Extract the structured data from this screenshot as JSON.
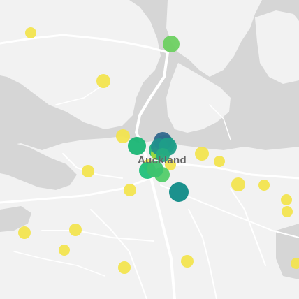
{
  "map": {
    "city_label": "Auckland",
    "colors": {
      "water": "#d6d6d6",
      "land": "#f2f2f2",
      "roads": "#ffffff",
      "label": "#666666"
    },
    "points": [
      {
        "color": "#f2e44f"
      },
      {
        "color": "#6dd061"
      },
      {
        "color": "#f2e44f"
      },
      {
        "color": "#f2e44f"
      },
      {
        "color": "#f2e44f"
      },
      {
        "color": "#f2e44f"
      },
      {
        "color": "#f2e44f"
      },
      {
        "color": "#f2e44f"
      },
      {
        "color": "#f2e44f"
      },
      {
        "color": "#f2e44f"
      },
      {
        "color": "#f2e44f"
      },
      {
        "color": "#f2e44f"
      },
      {
        "color": "#f2e44f"
      },
      {
        "color": "#f2e44f"
      },
      {
        "color": "#f2e44f"
      },
      {
        "color": "#f2e44f"
      },
      {
        "color": "#f2e44f"
      },
      {
        "color": "#f2e44f"
      },
      {
        "color": "#f2e44f"
      },
      {
        "color": "#f2e44f"
      },
      {
        "color": "#19b574"
      },
      {
        "color": "#20c07a"
      },
      {
        "color": "#52cc69"
      },
      {
        "color": "#3dc36e"
      },
      {
        "color": "#1eb17a"
      },
      {
        "color": "#27ad81"
      },
      {
        "color": "#a0da3c"
      },
      {
        "color": "#31688e"
      },
      {
        "color": "#21908d"
      },
      {
        "color": "#1f9e89"
      },
      {
        "color": "#25ab82"
      },
      {
        "color": "#0f8b87"
      }
    ]
  }
}
